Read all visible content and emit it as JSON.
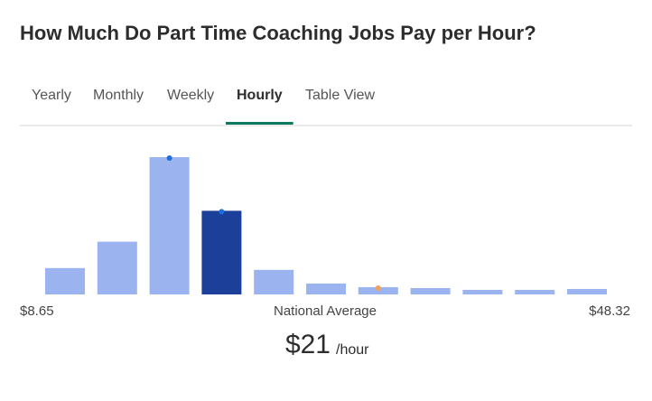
{
  "header": {
    "title": "How Much Do Part Time Coaching Jobs Pay per Hour?"
  },
  "tabs": {
    "items": [
      "Yearly",
      "Monthly",
      "Weekly",
      "Hourly",
      "Table View"
    ],
    "active": 3
  },
  "chart_data": {
    "type": "bar",
    "values": [
      29,
      58,
      151,
      92,
      27,
      12,
      8,
      7,
      5,
      5,
      6
    ],
    "color": "#9bb3ee",
    "highlight_color": "#1c3f9a",
    "highlight": 3,
    "markers": [
      {
        "bar": 2,
        "color": "#1a6fe0"
      },
      {
        "bar": 3,
        "color": "#1a6fe0"
      },
      {
        "bar": 6,
        "color": "#f0a05a"
      }
    ],
    "min_label": "$8.65",
    "center_label": "National Average",
    "max_label": "$48.32"
  },
  "summary": {
    "value": "$21",
    "unit": "/hour"
  }
}
